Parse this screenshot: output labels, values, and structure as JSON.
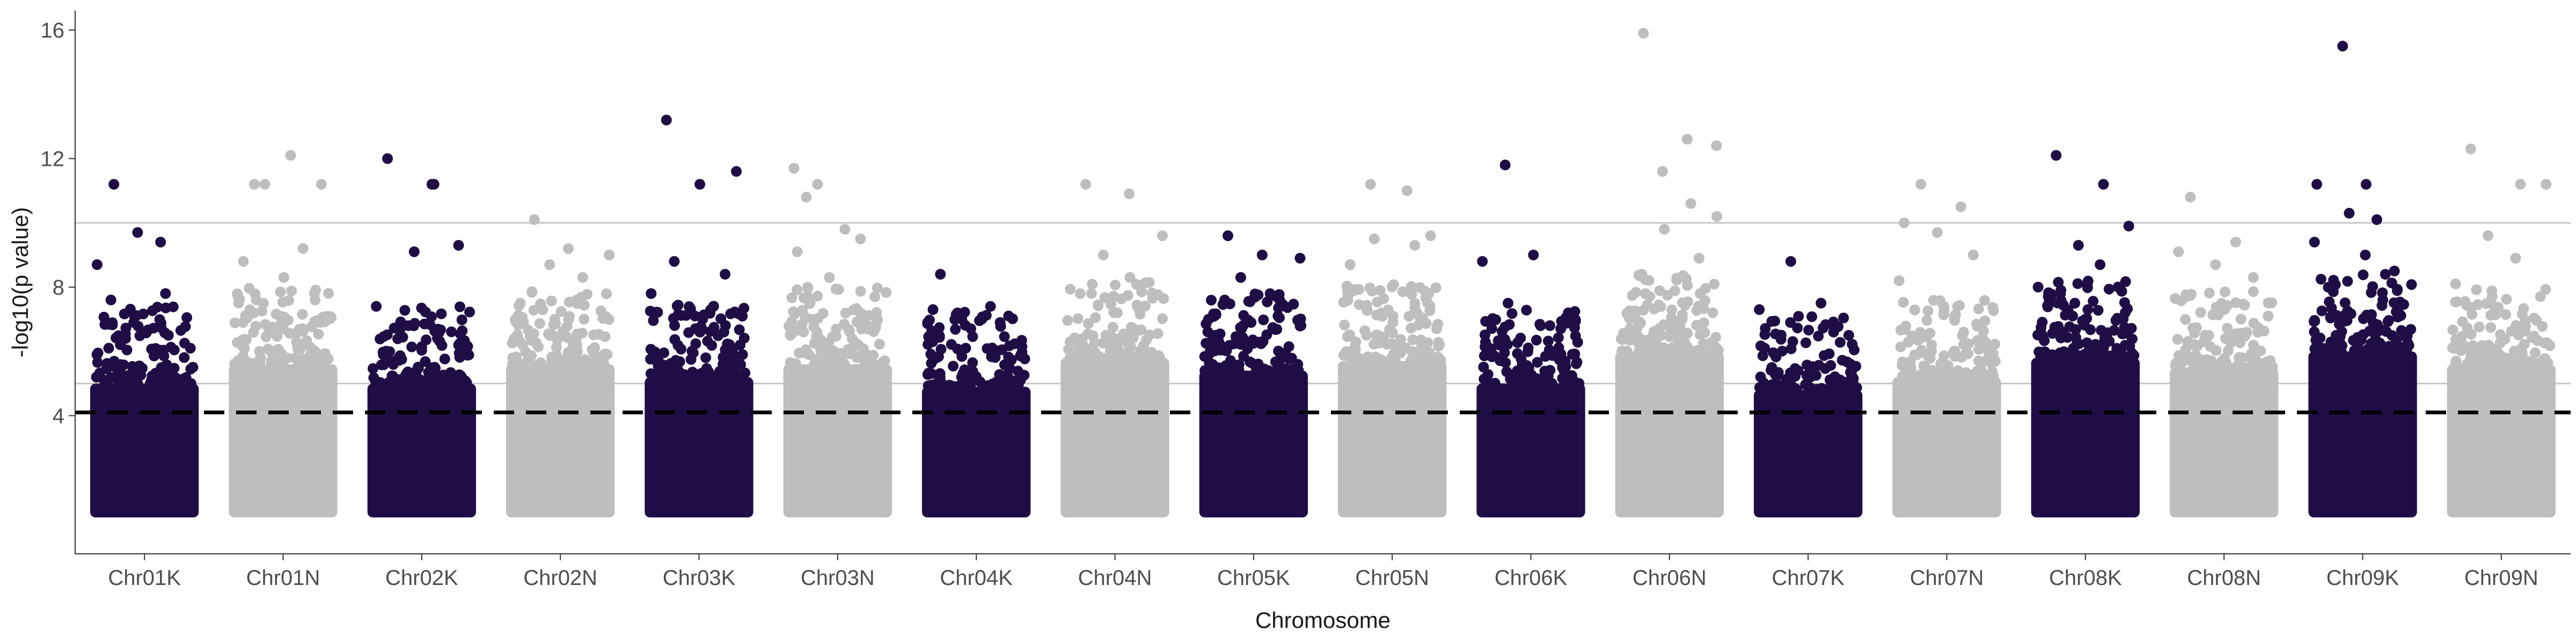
{
  "chart_data": {
    "type": "scatter",
    "subtype": "manhattan",
    "xlabel": "Chromosome",
    "ylabel": "-log10(p value)",
    "ylim": [
      -0.3,
      16.6
    ],
    "yticks": [
      4,
      8,
      12,
      16
    ],
    "grid": false,
    "legend": "none",
    "colors": {
      "dark": "#1e0e45",
      "light": "#bebebe",
      "threshold_line": "#000000",
      "reference_line": "#c8c8c8"
    },
    "threshold_line": {
      "y": 4.1,
      "style": "dashed"
    },
    "reference_lines": [
      10.0,
      5.0
    ],
    "categories": [
      "Chr01K",
      "Chr01N",
      "Chr02K",
      "Chr02N",
      "Chr03K",
      "Chr03N",
      "Chr04K",
      "Chr04N",
      "Chr05K",
      "Chr05N",
      "Chr06K",
      "Chr06N",
      "Chr07K",
      "Chr07N",
      "Chr08K",
      "Chr08N",
      "Chr09K",
      "Chr09N"
    ],
    "chromosomes": [
      {
        "name": "Chr01K",
        "color": "dark",
        "top": [
          11.2,
          9.4,
          8.7,
          9.7,
          7.8,
          7.6,
          6.9,
          6.5,
          6.1
        ],
        "dense_ceiling": 5.0
      },
      {
        "name": "Chr01N",
        "color": "light",
        "top": [
          11.2,
          12.1,
          11.2,
          11.2,
          9.2,
          8.8,
          8.3,
          7.6,
          6.9
        ],
        "dense_ceiling": 5.6
      },
      {
        "name": "Chr02K",
        "color": "dark",
        "top": [
          12.0,
          11.2,
          9.3,
          9.1,
          11.2,
          7.4,
          6.8,
          6.2
        ],
        "dense_ceiling": 5.0
      },
      {
        "name": "Chr02N",
        "color": "light",
        "top": [
          10.1,
          9.2,
          9.0,
          8.7,
          8.3,
          7.5,
          7.0
        ],
        "dense_ceiling": 5.6
      },
      {
        "name": "Chr03K",
        "color": "dark",
        "top": [
          13.2,
          11.2,
          11.6,
          8.8,
          8.4,
          7.8,
          7.1,
          6.6
        ],
        "dense_ceiling": 5.2
      },
      {
        "name": "Chr03N",
        "color": "light",
        "top": [
          10.8,
          9.8,
          11.7,
          11.2,
          9.5,
          9.1,
          8.3,
          7.7
        ],
        "dense_ceiling": 5.6
      },
      {
        "name": "Chr04K",
        "color": "dark",
        "top": [
          8.4,
          7.4,
          7.3,
          7.0,
          6.9,
          6.3
        ],
        "dense_ceiling": 4.9
      },
      {
        "name": "Chr04N",
        "color": "light",
        "top": [
          11.2,
          10.9,
          9.6,
          9.0,
          8.3,
          7.8,
          7.2
        ],
        "dense_ceiling": 5.8
      },
      {
        "name": "Chr05K",
        "color": "dark",
        "top": [
          9.6,
          9.0,
          8.9,
          8.3,
          7.6,
          7.0,
          6.9
        ],
        "dense_ceiling": 5.4
      },
      {
        "name": "Chr05N",
        "color": "light",
        "top": [
          11.2,
          11.0,
          9.6,
          9.5,
          9.3,
          8.7,
          7.9
        ],
        "dense_ceiling": 5.7
      },
      {
        "name": "Chr06K",
        "color": "dark",
        "top": [
          11.8,
          9.0,
          8.8,
          7.5,
          6.8,
          6.2
        ],
        "dense_ceiling": 5.0
      },
      {
        "name": "Chr06N",
        "color": "light",
        "top": [
          15.9,
          12.6,
          12.4,
          11.6,
          10.6,
          10.2,
          9.8,
          8.9,
          8.4
        ],
        "dense_ceiling": 6.0
      },
      {
        "name": "Chr07K",
        "color": "dark",
        "top": [
          8.8,
          7.5,
          7.3,
          6.9,
          6.6,
          6.1
        ],
        "dense_ceiling": 4.8
      },
      {
        "name": "Chr07N",
        "color": "light",
        "top": [
          11.2,
          10.5,
          10.0,
          9.7,
          9.0,
          8.2,
          7.4
        ],
        "dense_ceiling": 5.2
      },
      {
        "name": "Chr08K",
        "color": "dark",
        "top": [
          12.1,
          11.2,
          9.9,
          9.3,
          8.7,
          8.0,
          7.5
        ],
        "dense_ceiling": 5.8
      },
      {
        "name": "Chr08N",
        "color": "light",
        "top": [
          10.8,
          9.4,
          9.1,
          8.7,
          8.3,
          7.7,
          7.3
        ],
        "dense_ceiling": 5.5
      },
      {
        "name": "Chr09K",
        "color": "dark",
        "top": [
          15.5,
          11.2,
          11.2,
          10.3,
          10.1,
          9.4,
          9.0,
          8.5
        ],
        "dense_ceiling": 6.0
      },
      {
        "name": "Chr09N",
        "color": "light",
        "top": [
          12.3,
          11.2,
          11.2,
          9.6,
          8.9,
          8.1,
          7.4
        ],
        "dense_ceiling": 5.6
      }
    ]
  }
}
